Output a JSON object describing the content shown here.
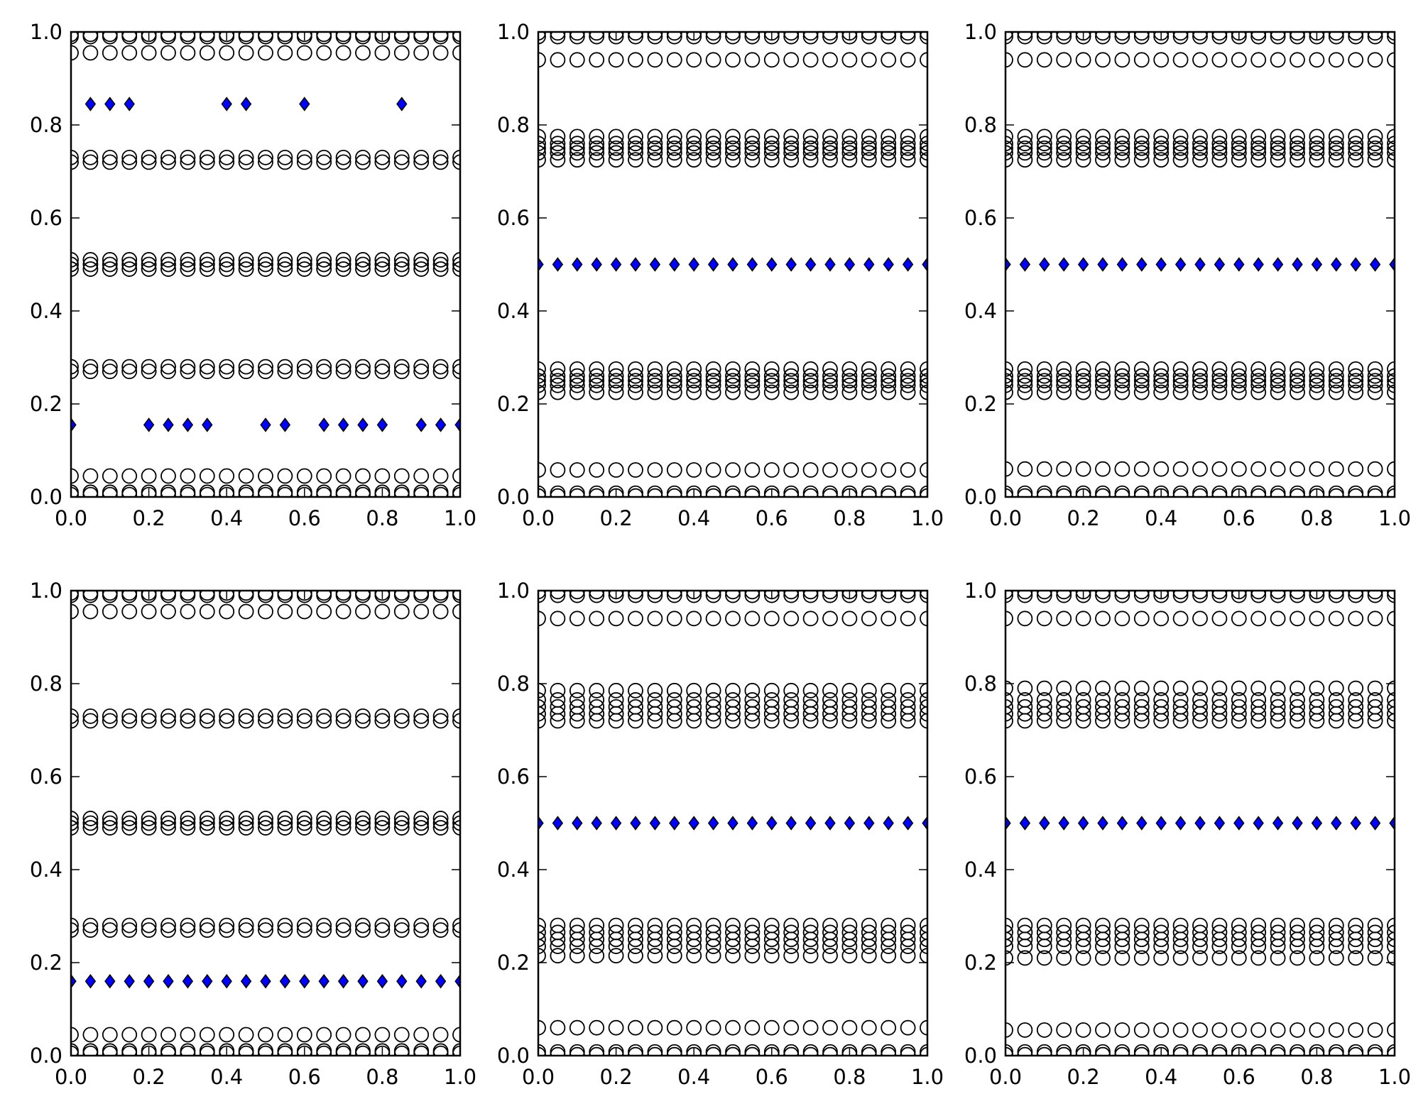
{
  "figure": {
    "background": "#ffffff"
  },
  "style": {
    "marker_stroke": "#000000",
    "diamond_fill": "#0000ff",
    "axis_color": "#000000"
  },
  "chart_data": [
    {
      "type": "scatter",
      "xlim": [
        0.0,
        1.0
      ],
      "ylim": [
        0.0,
        1.0
      ],
      "xticks": [
        "0.0",
        "0.2",
        "0.4",
        "0.6",
        "0.8",
        "1.0"
      ],
      "yticks": [
        "0.0",
        "0.2",
        "0.4",
        "0.6",
        "0.8",
        "1.0"
      ],
      "grid": false,
      "series": [
        {
          "marker": "circle",
          "x_step": 0.05,
          "y_bands": [
            0.005,
            0.01,
            0.045,
            0.27,
            0.28,
            0.49,
            0.5,
            0.51,
            0.72,
            0.73,
            0.955,
            0.99,
            0.995
          ]
        },
        {
          "marker": "diamond",
          "points": [
            [
              0.0,
              0.155
            ],
            [
              0.05,
              0.845
            ],
            [
              0.1,
              0.845
            ],
            [
              0.15,
              0.845
            ],
            [
              0.2,
              0.155
            ],
            [
              0.25,
              0.155
            ],
            [
              0.3,
              0.155
            ],
            [
              0.35,
              0.155
            ],
            [
              0.4,
              0.845
            ],
            [
              0.45,
              0.845
            ],
            [
              0.5,
              0.155
            ],
            [
              0.55,
              0.155
            ],
            [
              0.6,
              0.845
            ],
            [
              0.65,
              0.155
            ],
            [
              0.7,
              0.155
            ],
            [
              0.75,
              0.155
            ],
            [
              0.8,
              0.155
            ],
            [
              0.85,
              0.845
            ],
            [
              0.9,
              0.155
            ],
            [
              0.95,
              0.155
            ],
            [
              1.0,
              0.155
            ]
          ]
        }
      ]
    },
    {
      "type": "scatter",
      "xlim": [
        0.0,
        1.0
      ],
      "ylim": [
        0.0,
        1.0
      ],
      "xticks": [
        "0.0",
        "0.2",
        "0.4",
        "0.6",
        "0.8",
        "1.0"
      ],
      "yticks": [
        "0.0",
        "0.2",
        "0.4",
        "0.6",
        "0.8",
        "1.0"
      ],
      "grid": false,
      "series": [
        {
          "marker": "circle",
          "x_step": 0.05,
          "y_bands": [
            0.002,
            0.008,
            0.058,
            0.225,
            0.24,
            0.25,
            0.26,
            0.275,
            0.725,
            0.74,
            0.75,
            0.76,
            0.775,
            0.94,
            0.99,
            0.998
          ]
        },
        {
          "marker": "diamond",
          "x_step": 0.05,
          "y_const": 0.5
        }
      ]
    },
    {
      "type": "scatter",
      "xlim": [
        0.0,
        1.0
      ],
      "ylim": [
        0.0,
        1.0
      ],
      "xticks": [
        "0.0",
        "0.2",
        "0.4",
        "0.6",
        "0.8",
        "1.0"
      ],
      "yticks": [
        "0.0",
        "0.2",
        "0.4",
        "0.6",
        "0.8",
        "1.0"
      ],
      "grid": false,
      "series": [
        {
          "marker": "circle",
          "x_step": 0.05,
          "y_bands": [
            0.002,
            0.008,
            0.06,
            0.225,
            0.24,
            0.25,
            0.26,
            0.275,
            0.725,
            0.74,
            0.75,
            0.76,
            0.775,
            0.94,
            0.99,
            0.998
          ]
        },
        {
          "marker": "diamond",
          "x_step": 0.05,
          "y_const": 0.5
        }
      ]
    },
    {
      "type": "scatter",
      "xlim": [
        0.0,
        1.0
      ],
      "ylim": [
        0.0,
        1.0
      ],
      "xticks": [
        "0.0",
        "0.2",
        "0.4",
        "0.6",
        "0.8",
        "1.0"
      ],
      "yticks": [
        "0.0",
        "0.2",
        "0.4",
        "0.6",
        "0.8",
        "1.0"
      ],
      "grid": false,
      "series": [
        {
          "marker": "circle",
          "x_step": 0.05,
          "y_bands": [
            0.005,
            0.01,
            0.045,
            0.27,
            0.28,
            0.49,
            0.5,
            0.51,
            0.72,
            0.73,
            0.955,
            0.99,
            0.995
          ]
        },
        {
          "marker": "diamond",
          "x_step": 0.05,
          "y_const": 0.16
        }
      ]
    },
    {
      "type": "scatter",
      "xlim": [
        0.0,
        1.0
      ],
      "ylim": [
        0.0,
        1.0
      ],
      "xticks": [
        "0.0",
        "0.2",
        "0.4",
        "0.6",
        "0.8",
        "1.0"
      ],
      "yticks": [
        "0.0",
        "0.2",
        "0.4",
        "0.6",
        "0.8",
        "1.0"
      ],
      "grid": false,
      "series": [
        {
          "marker": "circle",
          "x_step": 0.05,
          "y_bands": [
            0.002,
            0.008,
            0.06,
            0.215,
            0.235,
            0.25,
            0.265,
            0.28,
            0.72,
            0.735,
            0.75,
            0.765,
            0.785,
            0.94,
            0.99,
            0.998
          ]
        },
        {
          "marker": "diamond",
          "x_step": 0.05,
          "y_const": 0.5
        }
      ]
    },
    {
      "type": "scatter",
      "xlim": [
        0.0,
        1.0
      ],
      "ylim": [
        0.0,
        1.0
      ],
      "xticks": [
        "0.0",
        "0.2",
        "0.4",
        "0.6",
        "0.8",
        "1.0"
      ],
      "yticks": [
        "0.0",
        "0.2",
        "0.4",
        "0.6",
        "0.8",
        "1.0"
      ],
      "grid": false,
      "series": [
        {
          "marker": "circle",
          "x_step": 0.05,
          "y_bands": [
            0.002,
            0.008,
            0.055,
            0.21,
            0.235,
            0.25,
            0.265,
            0.28,
            0.72,
            0.735,
            0.75,
            0.765,
            0.79,
            0.94,
            0.99,
            0.998
          ]
        },
        {
          "marker": "diamond",
          "x_step": 0.05,
          "y_const": 0.5
        }
      ]
    }
  ]
}
